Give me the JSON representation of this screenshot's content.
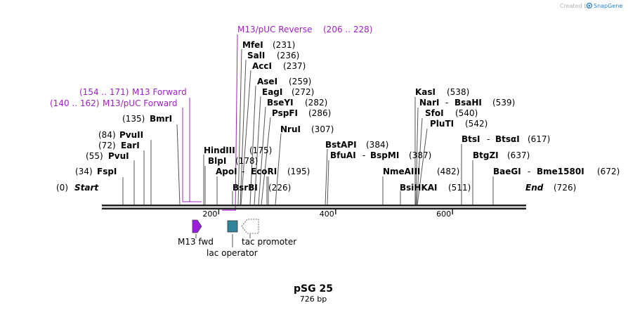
{
  "header": {
    "credit_text": "Created by",
    "brand": "SnapGene",
    "brand_color": "#2a7fd4"
  },
  "map": {
    "name": "pSG 25",
    "length_text": "726 bp",
    "length": 726,
    "ticks": [
      {
        "pos": 200,
        "label": "200"
      },
      {
        "pos": 400,
        "label": "400"
      },
      {
        "pos": 600,
        "label": "600"
      }
    ],
    "start_label": "Start",
    "start_pos": "(0)",
    "end_label": "End",
    "end_pos": "(726)"
  },
  "sites": [
    {
      "name": "FspI",
      "pos": "(34)"
    },
    {
      "name": "PvuI",
      "pos": "(55)"
    },
    {
      "name": "EarI",
      "pos": "(72)"
    },
    {
      "name": "PvuII",
      "pos": "(84)"
    },
    {
      "name": "BmrI",
      "pos": "(135)"
    },
    {
      "name": "HindIII",
      "pos": "(175)"
    },
    {
      "name": "BlpI",
      "pos": "(178)"
    },
    {
      "name": "ApoI",
      "name2": "EcoRI",
      "pos": "(195)"
    },
    {
      "name": "BsrBI",
      "pos": "(226)"
    },
    {
      "name": "MfeI",
      "pos": "(231)"
    },
    {
      "name": "SalI",
      "pos": "(236)"
    },
    {
      "name": "AccI",
      "pos": "(237)"
    },
    {
      "name": "AseI",
      "pos": "(259)"
    },
    {
      "name": "EagI",
      "pos": "(272)"
    },
    {
      "name": "BseYI",
      "pos": "(282)"
    },
    {
      "name": "PspFI",
      "pos": "(286)"
    },
    {
      "name": "NruI",
      "pos": "(307)"
    },
    {
      "name": "BstAPI",
      "pos": "(384)"
    },
    {
      "name": "BfuAI",
      "name2": "BspMI",
      "pos": "(387)"
    },
    {
      "name": "NmeAIII",
      "pos": "(482)"
    },
    {
      "name": "BsiHKAI",
      "pos": "(511)"
    },
    {
      "name": "KasI",
      "pos": "(538)"
    },
    {
      "name": "NarI",
      "name2": "BsaHI",
      "pos": "(539)"
    },
    {
      "name": "SfoI",
      "pos": "(540)"
    },
    {
      "name": "PluTI",
      "pos": "(542)"
    },
    {
      "name": "BtsI",
      "name2": "BtsαI",
      "pos": "(617)"
    },
    {
      "name": "BtgZI",
      "pos": "(637)"
    },
    {
      "name": "BaeGI",
      "name2": "Bme1580I",
      "pos": "(672)"
    }
  ],
  "primers": [
    {
      "name": "M13/pUC Reverse",
      "range": "(206 .. 228)"
    },
    {
      "name": "M13 Forward",
      "range": "(154 .. 171)"
    },
    {
      "name": "M13/pUC Forward",
      "range": "(140 .. 162)"
    }
  ],
  "features": [
    {
      "name": "M13 fwd",
      "color": "#9b1de0"
    },
    {
      "name": "lac operator",
      "color": "#31849b"
    },
    {
      "name": "tac promoter",
      "color": "#ffffff"
    }
  ]
}
